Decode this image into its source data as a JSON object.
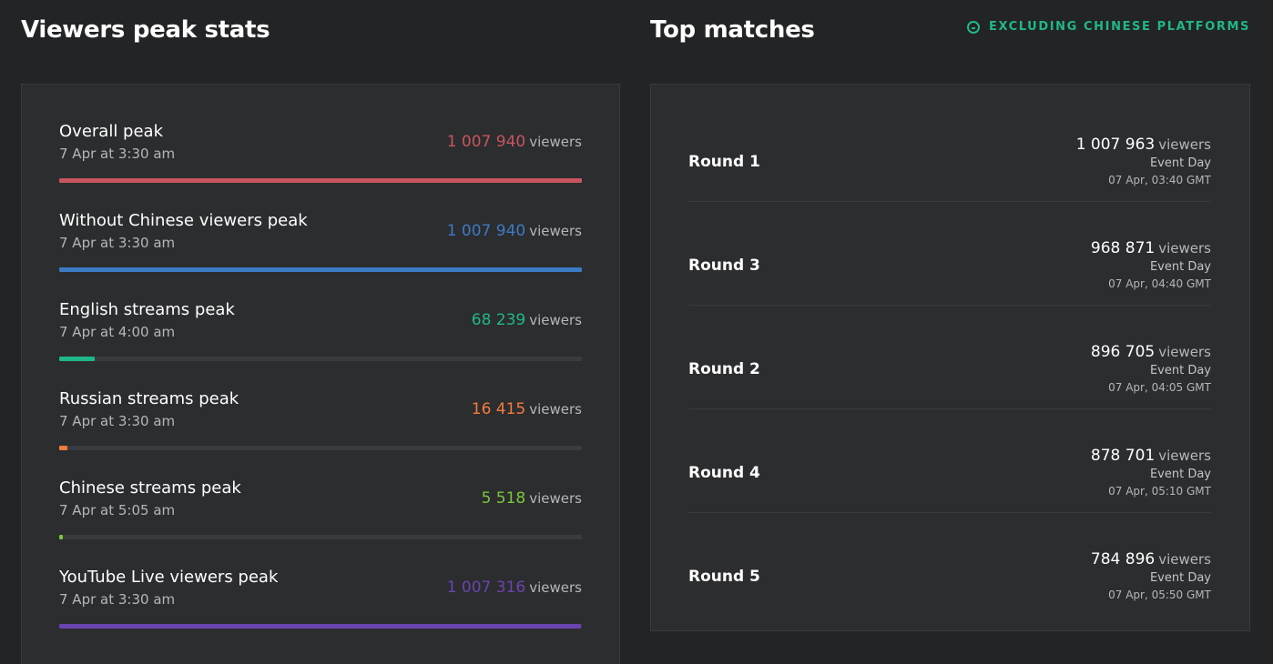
{
  "peak_stats": {
    "title": "Viewers peak stats",
    "items": [
      {
        "label": "Overall peak",
        "date": "7 Apr at 3:30 am",
        "value": "1 007 940",
        "unit": "viewers",
        "color": "#c8545e",
        "fill": 1.0
      },
      {
        "label": "Without Chinese viewers peak",
        "date": "7 Apr at 3:30 am",
        "value": "1 007 940",
        "unit": "viewers",
        "color": "#3d7ac4",
        "fill": 1.0
      },
      {
        "label": "English streams peak",
        "date": "7 Apr at 4:00 am",
        "value": "68 239",
        "unit": "viewers",
        "color": "#1fb789",
        "fill": 0.068
      },
      {
        "label": "Russian streams peak",
        "date": "7 Apr at 3:30 am",
        "value": "16 415",
        "unit": "viewers",
        "color": "#f47a3c",
        "fill": 0.016
      },
      {
        "label": "Chinese streams peak",
        "date": "7 Apr at 5:05 am",
        "value": "5 518",
        "unit": "viewers",
        "color": "#7cc63a",
        "fill": 0.005
      },
      {
        "label": "YouTube Live viewers peak",
        "date": "7 Apr at 3:30 am",
        "value": "1 007 316",
        "unit": "viewers",
        "color": "#6a44b0",
        "fill": 0.999
      }
    ]
  },
  "top_matches": {
    "title": "Top matches",
    "filter_label": "EXCLUDING CHINESE PLATFORMS",
    "filter_icon": "minus-circle-icon",
    "items": [
      {
        "name": "Round 1",
        "viewers": "1 007 963",
        "unit": "viewers",
        "event": "Event Day",
        "time": "07 Apr, 03:40 GMT"
      },
      {
        "name": "Round 3",
        "viewers": "968 871",
        "unit": "viewers",
        "event": "Event Day",
        "time": "07 Apr, 04:40 GMT"
      },
      {
        "name": "Round 2",
        "viewers": "896 705",
        "unit": "viewers",
        "event": "Event Day",
        "time": "07 Apr, 04:05 GMT"
      },
      {
        "name": "Round 4",
        "viewers": "878 701",
        "unit": "viewers",
        "event": "Event Day",
        "time": "07 Apr, 05:10 GMT"
      },
      {
        "name": "Round 5",
        "viewers": "784 896",
        "unit": "viewers",
        "event": "Event Day",
        "time": "07 Apr, 05:50 GMT"
      }
    ]
  }
}
